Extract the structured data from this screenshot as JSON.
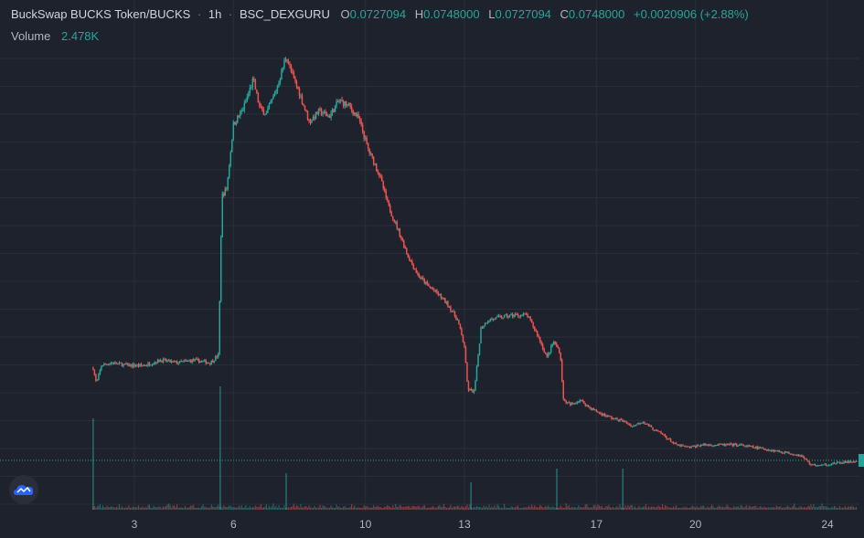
{
  "header": {
    "title": "BuckSwap BUCKS Token/BUCKS",
    "sep1": "·",
    "interval": "1h",
    "sep2": "·",
    "exchange": "BSC_DEXGURU",
    "o_label": "O",
    "o_value": "0.0727094",
    "h_label": "H",
    "h_value": "0.0748000",
    "l_label": "L",
    "l_value": "0.0727094",
    "c_label": "C",
    "c_value": "0.0748000",
    "change": "+0.0020906 (+2.88%)"
  },
  "volume": {
    "label": "Volume",
    "value": "2.478K"
  },
  "colors": {
    "up": "#26a69a",
    "down": "#ef5350",
    "grid": "#2a2e39",
    "text": "#b2b5be",
    "background": "#1e222d"
  },
  "icons": {
    "logo": "tradingview-cloud-icon"
  },
  "chart_data": {
    "type": "candlestick",
    "interval": "1h",
    "x_axis_ticks": [
      "3",
      "6",
      "10",
      "13",
      "17",
      "20",
      "24"
    ],
    "x_range_days": [
      1.7,
      24.9
    ],
    "y_range": [
      0.072,
      0.234
    ],
    "last_close": 0.0748,
    "price_path": [
      [
        1.75,
        0.11
      ],
      [
        1.85,
        0.104
      ],
      [
        2.0,
        0.111
      ],
      [
        2.3,
        0.112
      ],
      [
        2.8,
        0.111
      ],
      [
        3.3,
        0.111
      ],
      [
        3.8,
        0.113
      ],
      [
        4.3,
        0.112
      ],
      [
        4.8,
        0.113
      ],
      [
        5.3,
        0.112
      ],
      [
        5.55,
        0.115
      ],
      [
        5.65,
        0.175
      ],
      [
        5.8,
        0.178
      ],
      [
        6.0,
        0.202
      ],
      [
        6.3,
        0.208
      ],
      [
        6.6,
        0.219
      ],
      [
        6.8,
        0.208
      ],
      [
        7.0,
        0.206
      ],
      [
        7.3,
        0.215
      ],
      [
        7.6,
        0.228
      ],
      [
        7.8,
        0.22
      ],
      [
        8.0,
        0.214
      ],
      [
        8.3,
        0.203
      ],
      [
        8.6,
        0.207
      ],
      [
        8.9,
        0.205
      ],
      [
        9.2,
        0.211
      ],
      [
        9.5,
        0.209
      ],
      [
        9.8,
        0.204
      ],
      [
        10.1,
        0.192
      ],
      [
        10.4,
        0.184
      ],
      [
        10.7,
        0.171
      ],
      [
        11.0,
        0.162
      ],
      [
        11.3,
        0.152
      ],
      [
        11.6,
        0.145
      ],
      [
        11.9,
        0.141
      ],
      [
        12.2,
        0.138
      ],
      [
        12.5,
        0.134
      ],
      [
        12.8,
        0.128
      ],
      [
        13.0,
        0.118
      ],
      [
        13.1,
        0.102
      ],
      [
        13.3,
        0.101
      ],
      [
        13.5,
        0.125
      ],
      [
        13.7,
        0.128
      ],
      [
        14.0,
        0.129
      ],
      [
        14.5,
        0.13
      ],
      [
        14.9,
        0.13
      ],
      [
        15.2,
        0.123
      ],
      [
        15.5,
        0.114
      ],
      [
        15.7,
        0.12
      ],
      [
        15.9,
        0.116
      ],
      [
        16.0,
        0.098
      ],
      [
        16.2,
        0.096
      ],
      [
        16.5,
        0.098
      ],
      [
        16.8,
        0.095
      ],
      [
        17.1,
        0.093
      ],
      [
        17.5,
        0.091
      ],
      [
        17.8,
        0.09
      ],
      [
        18.1,
        0.088
      ],
      [
        18.4,
        0.09
      ],
      [
        18.7,
        0.087
      ],
      [
        19.0,
        0.085
      ],
      [
        19.4,
        0.081
      ],
      [
        19.8,
        0.08
      ],
      [
        20.2,
        0.081
      ],
      [
        20.8,
        0.081
      ],
      [
        21.3,
        0.081
      ],
      [
        21.8,
        0.08
      ],
      [
        22.3,
        0.079
      ],
      [
        22.8,
        0.078
      ],
      [
        23.2,
        0.077
      ],
      [
        23.5,
        0.0735
      ],
      [
        23.8,
        0.0732
      ],
      [
        24.2,
        0.074
      ],
      [
        24.6,
        0.0745
      ],
      [
        24.9,
        0.0748
      ]
    ],
    "volume_spikes": [
      {
        "day": 1.75,
        "volume": 1.0
      },
      {
        "day": 5.6,
        "volume": 1.35
      },
      {
        "day": 7.6,
        "volume": 0.4
      },
      {
        "day": 13.2,
        "volume": 0.3
      },
      {
        "day": 15.8,
        "volume": 0.45
      },
      {
        "day": 17.8,
        "volume": 0.45
      }
    ]
  }
}
